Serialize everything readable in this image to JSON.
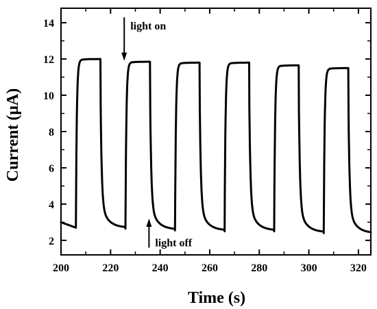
{
  "chart_data": {
    "type": "line",
    "title": "",
    "xlabel": "Time (s)",
    "ylabel": "Current (μA)",
    "xlim": [
      200,
      325
    ],
    "ylim": [
      1.2,
      14.8
    ],
    "xticks": [
      200,
      220,
      240,
      260,
      280,
      300,
      320
    ],
    "yticks": [
      2,
      4,
      6,
      8,
      10,
      12,
      14
    ],
    "grid": false,
    "legend": "none",
    "line_color": "#000000",
    "cycles": [
      {
        "on": 206,
        "off": 216,
        "peak": 12.0,
        "base_start": 2.7,
        "base_end": 2.65
      },
      {
        "on": 226,
        "off": 236,
        "peak": 11.85,
        "base_start": 2.65,
        "base_end": 2.55
      },
      {
        "on": 246,
        "off": 256,
        "peak": 11.8,
        "base_start": 2.55,
        "base_end": 2.5
      },
      {
        "on": 266,
        "off": 276,
        "peak": 11.8,
        "base_start": 2.5,
        "base_end": 2.5
      },
      {
        "on": 286,
        "off": 296,
        "peak": 11.65,
        "base_start": 2.5,
        "base_end": 2.4
      },
      {
        "on": 306,
        "off": 316,
        "peak": 11.5,
        "base_start": 2.4,
        "base_end": 2.35
      }
    ],
    "initial": {
      "x": 200,
      "y": 3.0
    },
    "annotations": [
      {
        "text": "light on",
        "arrow_x": 225.5,
        "arrow_from_y": 14.3,
        "arrow_to_y": 11.9,
        "direction": "down"
      },
      {
        "text": "light off",
        "arrow_x": 235.5,
        "arrow_from_y": 1.6,
        "arrow_to_y": 3.2,
        "direction": "up"
      }
    ]
  }
}
